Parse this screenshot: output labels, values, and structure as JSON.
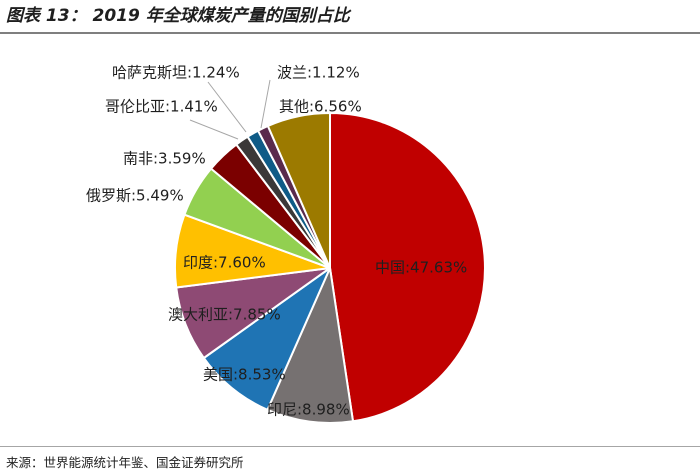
{
  "figure": {
    "title": "图表 13： 2019 年全球煤炭产量的国别占比",
    "source": "来源：世界能源统计年鉴、国金证券研究所"
  },
  "chart_data": {
    "type": "pie",
    "title": "",
    "start_angle_deg": 0,
    "direction": "clockwise",
    "slices": [
      {
        "label": "中国",
        "value": 47.63,
        "display": "中国:47.63%",
        "color": "#c00000"
      },
      {
        "label": "印尼",
        "value": 8.98,
        "display": "印尼:8.98%",
        "color": "#767171"
      },
      {
        "label": "美国",
        "value": 8.53,
        "display": "美国:8.53%",
        "color": "#1f74b4"
      },
      {
        "label": "澳大利亚",
        "value": 7.85,
        "display": "澳大利亚:7.85%",
        "color": "#8e4a74"
      },
      {
        "label": "印度",
        "value": 7.6,
        "display": "印度:7.60%",
        "color": "#ffc000"
      },
      {
        "label": "俄罗斯",
        "value": 5.49,
        "display": "俄罗斯:5.49%",
        "color": "#92d050"
      },
      {
        "label": "南非",
        "value": 3.59,
        "display": "南非:3.59%",
        "color": "#7b0000"
      },
      {
        "label": "哥伦比亚",
        "value": 1.41,
        "display": "哥伦比亚:1.41%",
        "color": "#3b3838"
      },
      {
        "label": "哈萨克斯坦",
        "value": 1.24,
        "display": "哈萨克斯坦:1.24%",
        "color": "#0f5b87"
      },
      {
        "label": "波兰",
        "value": 1.12,
        "display": "波兰:1.12%",
        "color": "#5a2a4c"
      },
      {
        "label": "其他",
        "value": 6.56,
        "display": "其他:6.56%",
        "color": "#9c7a00"
      }
    ]
  }
}
